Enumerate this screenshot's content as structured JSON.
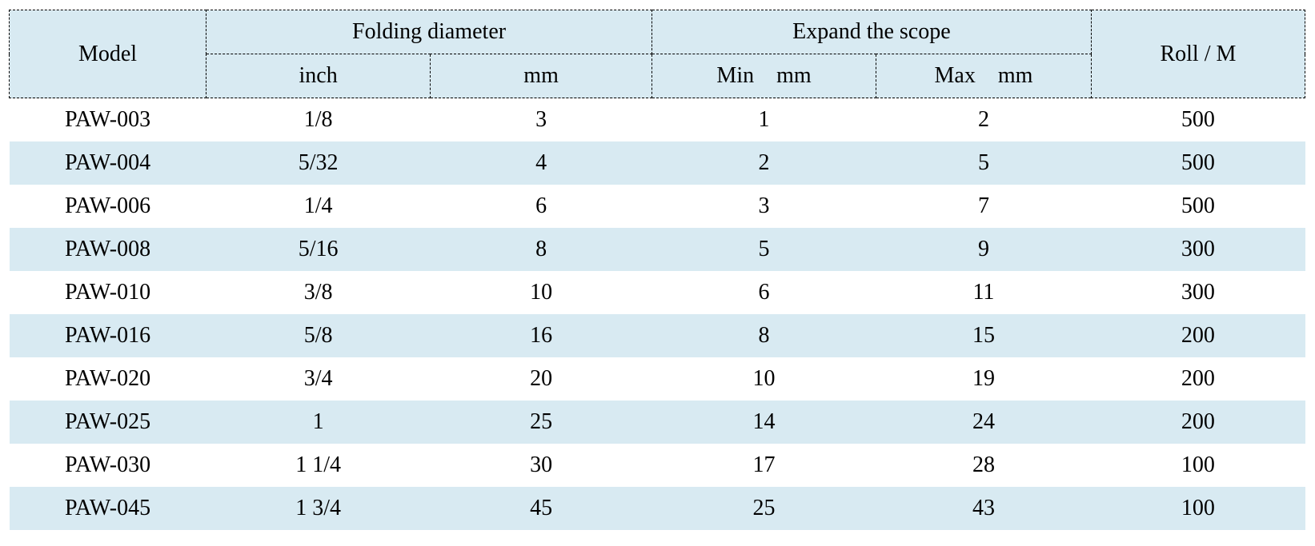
{
  "colors": {
    "stripe": "#d8eaf2",
    "border": "#000000",
    "text": "#000000"
  },
  "table": {
    "header": {
      "model": "Model",
      "folding_diameter": "Folding diameter",
      "expand_scope": "Expand the scope",
      "roll": "Roll / M",
      "inch": "inch",
      "mm": "mm",
      "min_mm": "Min    mm",
      "max_mm": "Max    mm"
    },
    "rows": [
      {
        "model": "PAW-003",
        "inch": "1/8",
        "mm": "3",
        "min": "1",
        "max": "2",
        "roll": "500"
      },
      {
        "model": "PAW-004",
        "inch": "5/32",
        "mm": "4",
        "min": "2",
        "max": "5",
        "roll": "500"
      },
      {
        "model": "PAW-006",
        "inch": "1/4",
        "mm": "6",
        "min": "3",
        "max": "7",
        "roll": "500"
      },
      {
        "model": "PAW-008",
        "inch": "5/16",
        "mm": "8",
        "min": "5",
        "max": "9",
        "roll": "300"
      },
      {
        "model": "PAW-010",
        "inch": "3/8",
        "mm": "10",
        "min": "6",
        "max": "11",
        "roll": "300"
      },
      {
        "model": "PAW-016",
        "inch": "5/8",
        "mm": "16",
        "min": "8",
        "max": "15",
        "roll": "200"
      },
      {
        "model": "PAW-020",
        "inch": "3/4",
        "mm": "20",
        "min": "10",
        "max": "19",
        "roll": "200"
      },
      {
        "model": "PAW-025",
        "inch": "1",
        "mm": "25",
        "min": "14",
        "max": "24",
        "roll": "200"
      },
      {
        "model": "PAW-030",
        "inch": "1 1/4",
        "mm": "30",
        "min": "17",
        "max": "28",
        "roll": "100"
      },
      {
        "model": "PAW-045",
        "inch": "1 3/4",
        "mm": "45",
        "min": "25",
        "max": "43",
        "roll": "100"
      }
    ]
  }
}
